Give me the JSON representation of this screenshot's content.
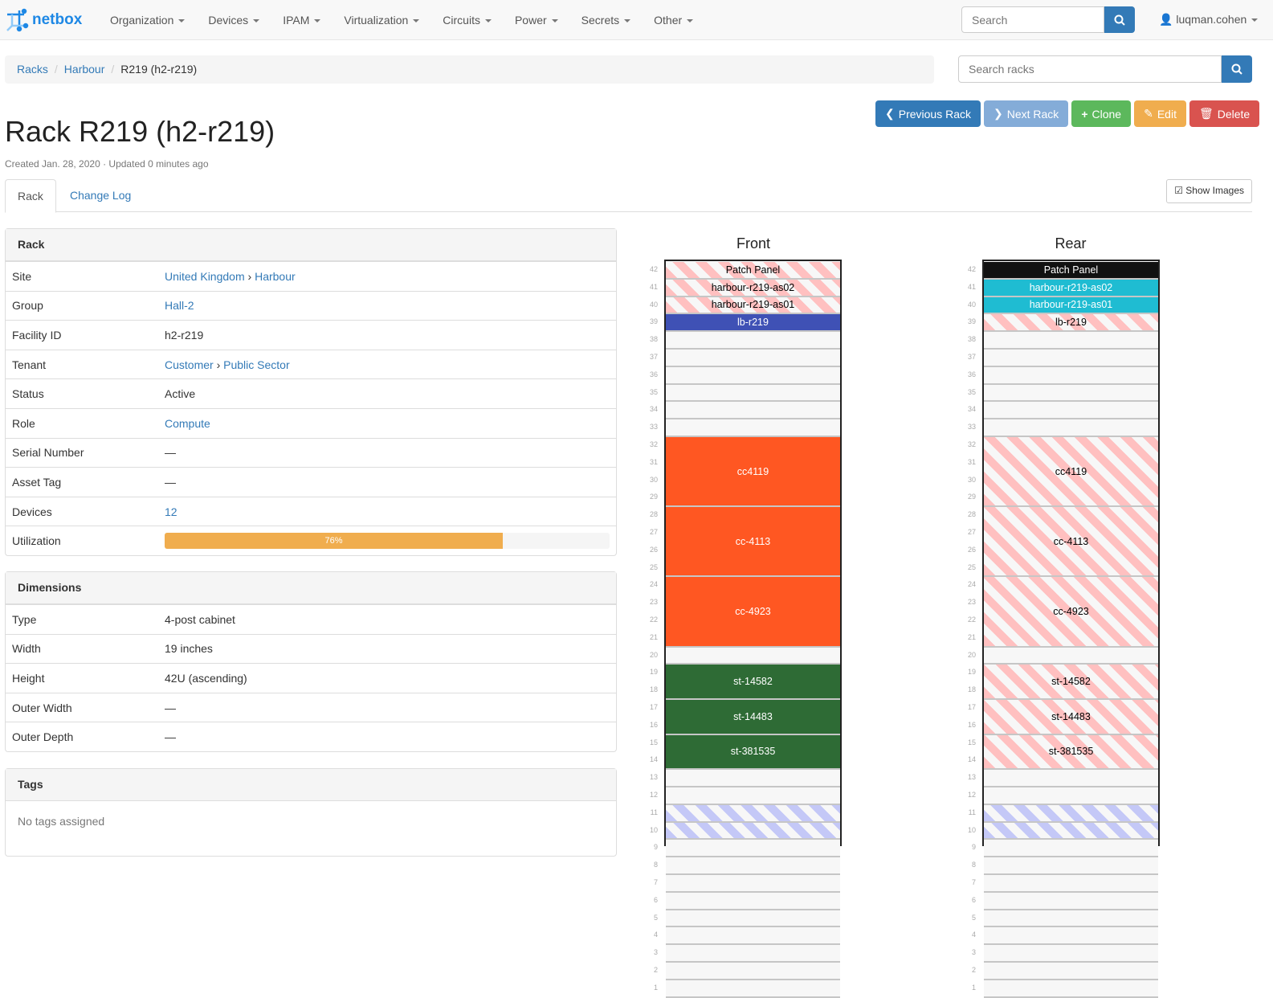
{
  "nav": {
    "brand": "netbox",
    "menu": [
      "Organization",
      "Devices",
      "IPAM",
      "Virtualization",
      "Circuits",
      "Power",
      "Secrets",
      "Other"
    ],
    "search_placeholder": "Search",
    "user": "luqman.cohen"
  },
  "breadcrumb": [
    "Racks",
    "Harbour",
    "R219 (h2-r219)"
  ],
  "rack_search_placeholder": "Search racks",
  "actions": [
    {
      "label": "Previous Rack",
      "icon": "chevron-left",
      "color": "#337ab7"
    },
    {
      "label": "Next Rack",
      "icon": "chevron-right",
      "color": "#84acd8"
    },
    {
      "label": "Clone",
      "icon": "plus",
      "color": "#5cb85c"
    },
    {
      "label": "Edit",
      "icon": "pencil",
      "color": "#f0ad4e"
    },
    {
      "label": "Delete",
      "icon": "trash",
      "color": "#d9534f"
    }
  ],
  "title": "Rack R219 (h2-r219)",
  "meta": "Created Jan. 28, 2020 · Updated 0 minutes ago",
  "tabs": [
    "Rack",
    "Change Log"
  ],
  "show_images": "Show Images",
  "rack_panel": {
    "title": "Rack",
    "site": {
      "k": "Site",
      "v1": "United Kingdom",
      "v2": "Harbour"
    },
    "group": {
      "k": "Group",
      "v": "Hall-2"
    },
    "facility": {
      "k": "Facility ID",
      "v": "h2-r219"
    },
    "tenant": {
      "k": "Tenant",
      "v1": "Customer",
      "v2": "Public Sector"
    },
    "status": {
      "k": "Status",
      "v": "Active"
    },
    "role": {
      "k": "Role",
      "v": "Compute"
    },
    "serial": {
      "k": "Serial Number",
      "v": "—"
    },
    "asset": {
      "k": "Asset Tag",
      "v": "—"
    },
    "devices": {
      "k": "Devices",
      "v": "12"
    },
    "util": {
      "k": "Utilization",
      "v": "76%",
      "percent": 76
    }
  },
  "dimensions": {
    "title": "Dimensions",
    "rows": [
      {
        "k": "Type",
        "v": "4-post cabinet"
      },
      {
        "k": "Width",
        "v": "19 inches"
      },
      {
        "k": "Height",
        "v": "42U (ascending)"
      },
      {
        "k": "Outer Width",
        "v": "—"
      },
      {
        "k": "Outer Depth",
        "v": "—"
      }
    ]
  },
  "tags": {
    "title": "Tags",
    "empty": "No tags assigned"
  },
  "elevations": {
    "front": {
      "title": "Front",
      "devices": [
        {
          "name": "Patch Panel",
          "u": 42,
          "h": 1,
          "style": "hr"
        },
        {
          "name": "harbour-r219-as02",
          "u": 41,
          "h": 1,
          "style": "hr"
        },
        {
          "name": "harbour-r219-as01",
          "u": 40,
          "h": 1,
          "style": "hr"
        },
        {
          "name": "lb-r219",
          "u": 39,
          "h": 1,
          "color": "#3f51b5"
        },
        {
          "name": "cc4119",
          "u": 29,
          "h": 4,
          "color": "#ff5722"
        },
        {
          "name": "cc-4113",
          "u": 25,
          "h": 4,
          "color": "#ff5722"
        },
        {
          "name": "cc-4923",
          "u": 21,
          "h": 4,
          "color": "#ff5722"
        },
        {
          "name": "st-14582",
          "u": 18,
          "h": 2,
          "color": "#2e6b35"
        },
        {
          "name": "st-14483",
          "u": 16,
          "h": 2,
          "color": "#2e6b35"
        },
        {
          "name": "st-381535",
          "u": 14,
          "h": 2,
          "color": "#2e6b35"
        }
      ]
    },
    "rear": {
      "title": "Rear",
      "devices": [
        {
          "name": "Patch Panel",
          "u": 42,
          "h": 1,
          "color": "#111111"
        },
        {
          "name": "harbour-r219-as02",
          "u": 41,
          "h": 1,
          "color": "#1fbcd2"
        },
        {
          "name": "harbour-r219-as01",
          "u": 40,
          "h": 1,
          "color": "#1fbcd2"
        },
        {
          "name": "lb-r219",
          "u": 39,
          "h": 1,
          "style": "hr"
        },
        {
          "name": "cc4119",
          "u": 29,
          "h": 4,
          "style": "hr"
        },
        {
          "name": "cc-4113",
          "u": 25,
          "h": 4,
          "style": "hr"
        },
        {
          "name": "cc-4923",
          "u": 21,
          "h": 4,
          "style": "hr"
        },
        {
          "name": "st-14582",
          "u": 18,
          "h": 2,
          "style": "hr"
        },
        {
          "name": "st-14483",
          "u": 16,
          "h": 2,
          "style": "hr"
        },
        {
          "name": "st-381535",
          "u": 14,
          "h": 2,
          "style": "hr"
        }
      ]
    },
    "reserved_units": [
      11,
      10
    ]
  }
}
